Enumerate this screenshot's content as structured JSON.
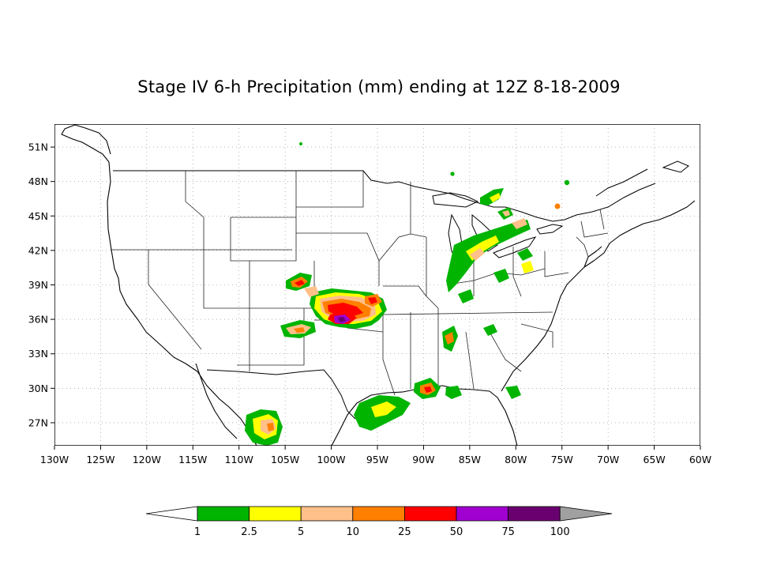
{
  "title": "Stage IV 6-h Precipitation (mm) ending at 12Z 8-18-2009",
  "map": {
    "lon_range": [
      -130,
      -60
    ],
    "lat_range": [
      25,
      53
    ],
    "lat_ticks": [
      {
        "value": 51,
        "label": "51N"
      },
      {
        "value": 48,
        "label": "48N"
      },
      {
        "value": 45,
        "label": "45N"
      },
      {
        "value": 42,
        "label": "42N"
      },
      {
        "value": 39,
        "label": "39N"
      },
      {
        "value": 36,
        "label": "36N"
      },
      {
        "value": 33,
        "label": "33N"
      },
      {
        "value": 30,
        "label": "30N"
      },
      {
        "value": 27,
        "label": "27N"
      }
    ],
    "lon_ticks": [
      {
        "value": -130,
        "label": "130W"
      },
      {
        "value": -125,
        "label": "125W"
      },
      {
        "value": -120,
        "label": "120W"
      },
      {
        "value": -115,
        "label": "115W"
      },
      {
        "value": -110,
        "label": "110W"
      },
      {
        "value": -105,
        "label": "105W"
      },
      {
        "value": -100,
        "label": "100W"
      },
      {
        "value": -95,
        "label": "95W"
      },
      {
        "value": -90,
        "label": "90W"
      },
      {
        "value": -85,
        "label": "85W"
      },
      {
        "value": -80,
        "label": "80W"
      },
      {
        "value": -75,
        "label": "75W"
      },
      {
        "value": -70,
        "label": "70W"
      },
      {
        "value": -65,
        "label": "65W"
      },
      {
        "value": -60,
        "label": "60W"
      }
    ]
  },
  "colorbar": {
    "labels": [
      "1",
      "2.5",
      "5",
      "10",
      "25",
      "50",
      "75",
      "100"
    ],
    "colors": [
      "#00b400",
      "#ffff00",
      "#ffc08a",
      "#ff8000",
      "#ff0000",
      "#a000d0",
      "#6a0070"
    ],
    "low_end_color": "#ffffff",
    "high_end_color": "#a0a0a0"
  }
}
